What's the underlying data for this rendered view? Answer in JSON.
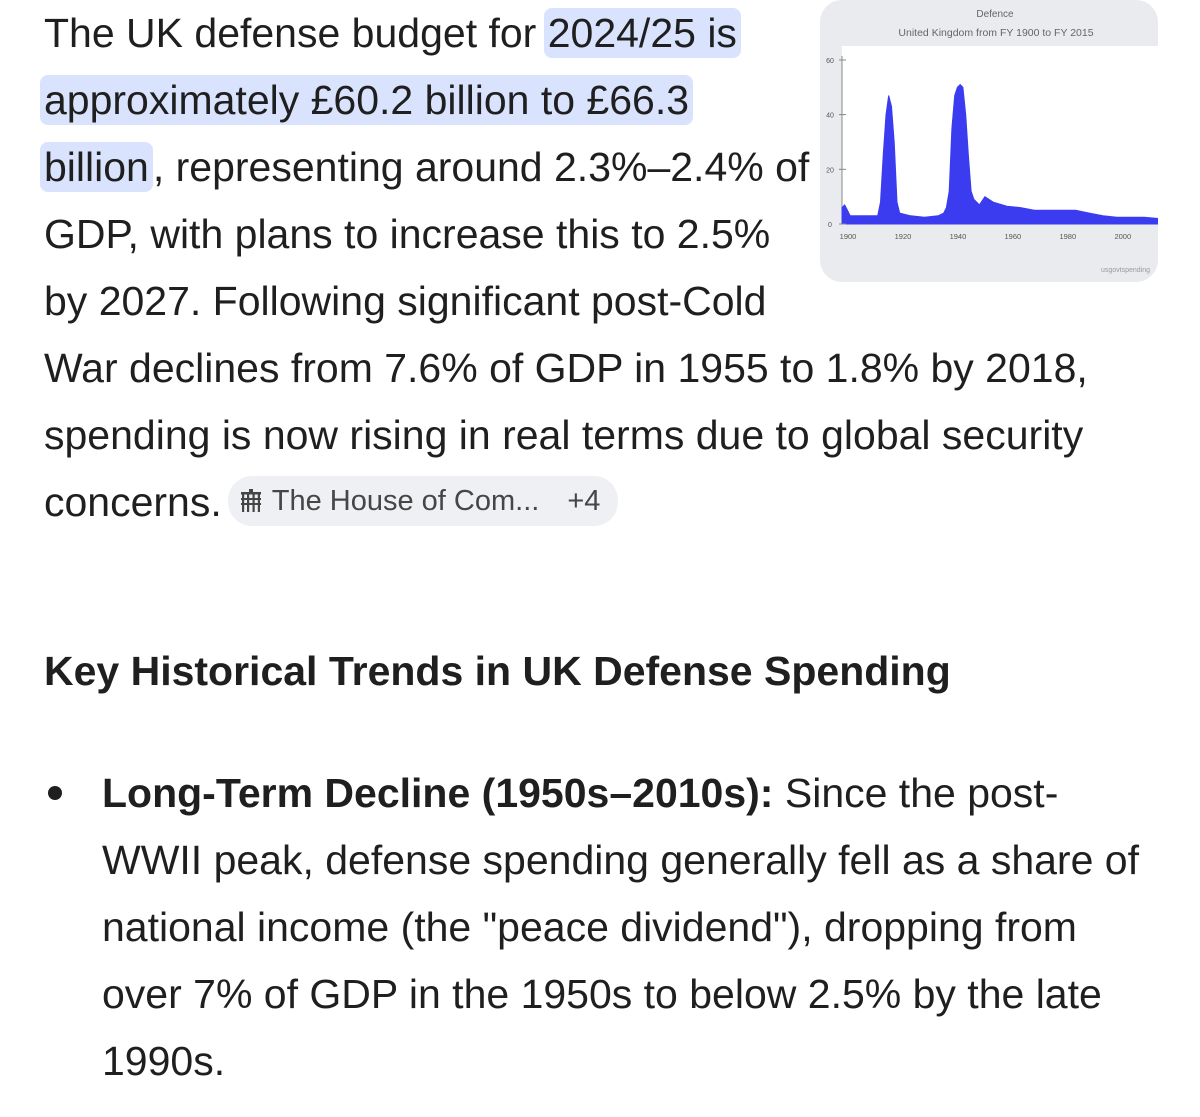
{
  "answer": {
    "intro_before": "The UK defense budget for ",
    "highlight": "2024/25 is approximately £60.2 billion to £66.3 billion",
    "intro_after": ", representing around 2.3%–2.4% of GDP, with plans to increase this to 2.5% by 2027. Following significant post-Cold War declines from 7.6% of GDP in 1955 to 1.8% by 2018, spending is now rising in real terms due to global security concerns.",
    "source_chip": {
      "icon": "portcullis-icon",
      "label": "The House of Com...",
      "more": "+4"
    }
  },
  "thumbnail": {
    "chart_data": {
      "type": "area",
      "title": "Defence",
      "subtitle": "United Kingdom from FY 1900 to FY 2015",
      "xlabel": "",
      "ylabel": "",
      "x_ticks": [
        "1900",
        "1920",
        "1940",
        "1960",
        "1980",
        "2000"
      ],
      "y_ticks": [
        "0",
        "20",
        "40",
        "60"
      ],
      "xlim": [
        1900,
        2015
      ],
      "ylim": [
        0,
        60
      ],
      "x": [
        1900,
        1901,
        1902,
        1903,
        1910,
        1913,
        1914,
        1915,
        1916,
        1917,
        1918,
        1919,
        1920,
        1921,
        1925,
        1930,
        1935,
        1937,
        1938,
        1939,
        1940,
        1941,
        1942,
        1943,
        1944,
        1945,
        1946,
        1947,
        1948,
        1950,
        1952,
        1955,
        1960,
        1965,
        1970,
        1975,
        1980,
        1985,
        1990,
        1995,
        2000,
        2005,
        2010,
        2015
      ],
      "values": [
        6,
        7,
        5,
        3,
        3,
        3,
        8,
        25,
        40,
        47,
        43,
        30,
        8,
        4,
        3,
        2.5,
        3,
        4,
        6,
        12,
        35,
        47,
        50,
        51,
        50,
        40,
        25,
        12,
        9,
        7,
        10,
        8,
        6.5,
        6,
        5,
        5,
        5,
        5,
        4,
        3,
        2.5,
        2.5,
        2.5,
        2
      ],
      "color": "#3b3cf0",
      "grid": false
    },
    "watermark": "usgovtspending"
  },
  "section": {
    "heading": "Key Historical Trends in UK Defense Spending",
    "bullets": [
      {
        "title": "Long-Term Decline (1950s–2010s):",
        "text": " Since the post-WWII peak, defense spending generally fell as a share of national income (the \"peace dividend\"), dropping from over 7% of GDP in the 1950s to below 2.5% by the late 1990s."
      }
    ]
  }
}
